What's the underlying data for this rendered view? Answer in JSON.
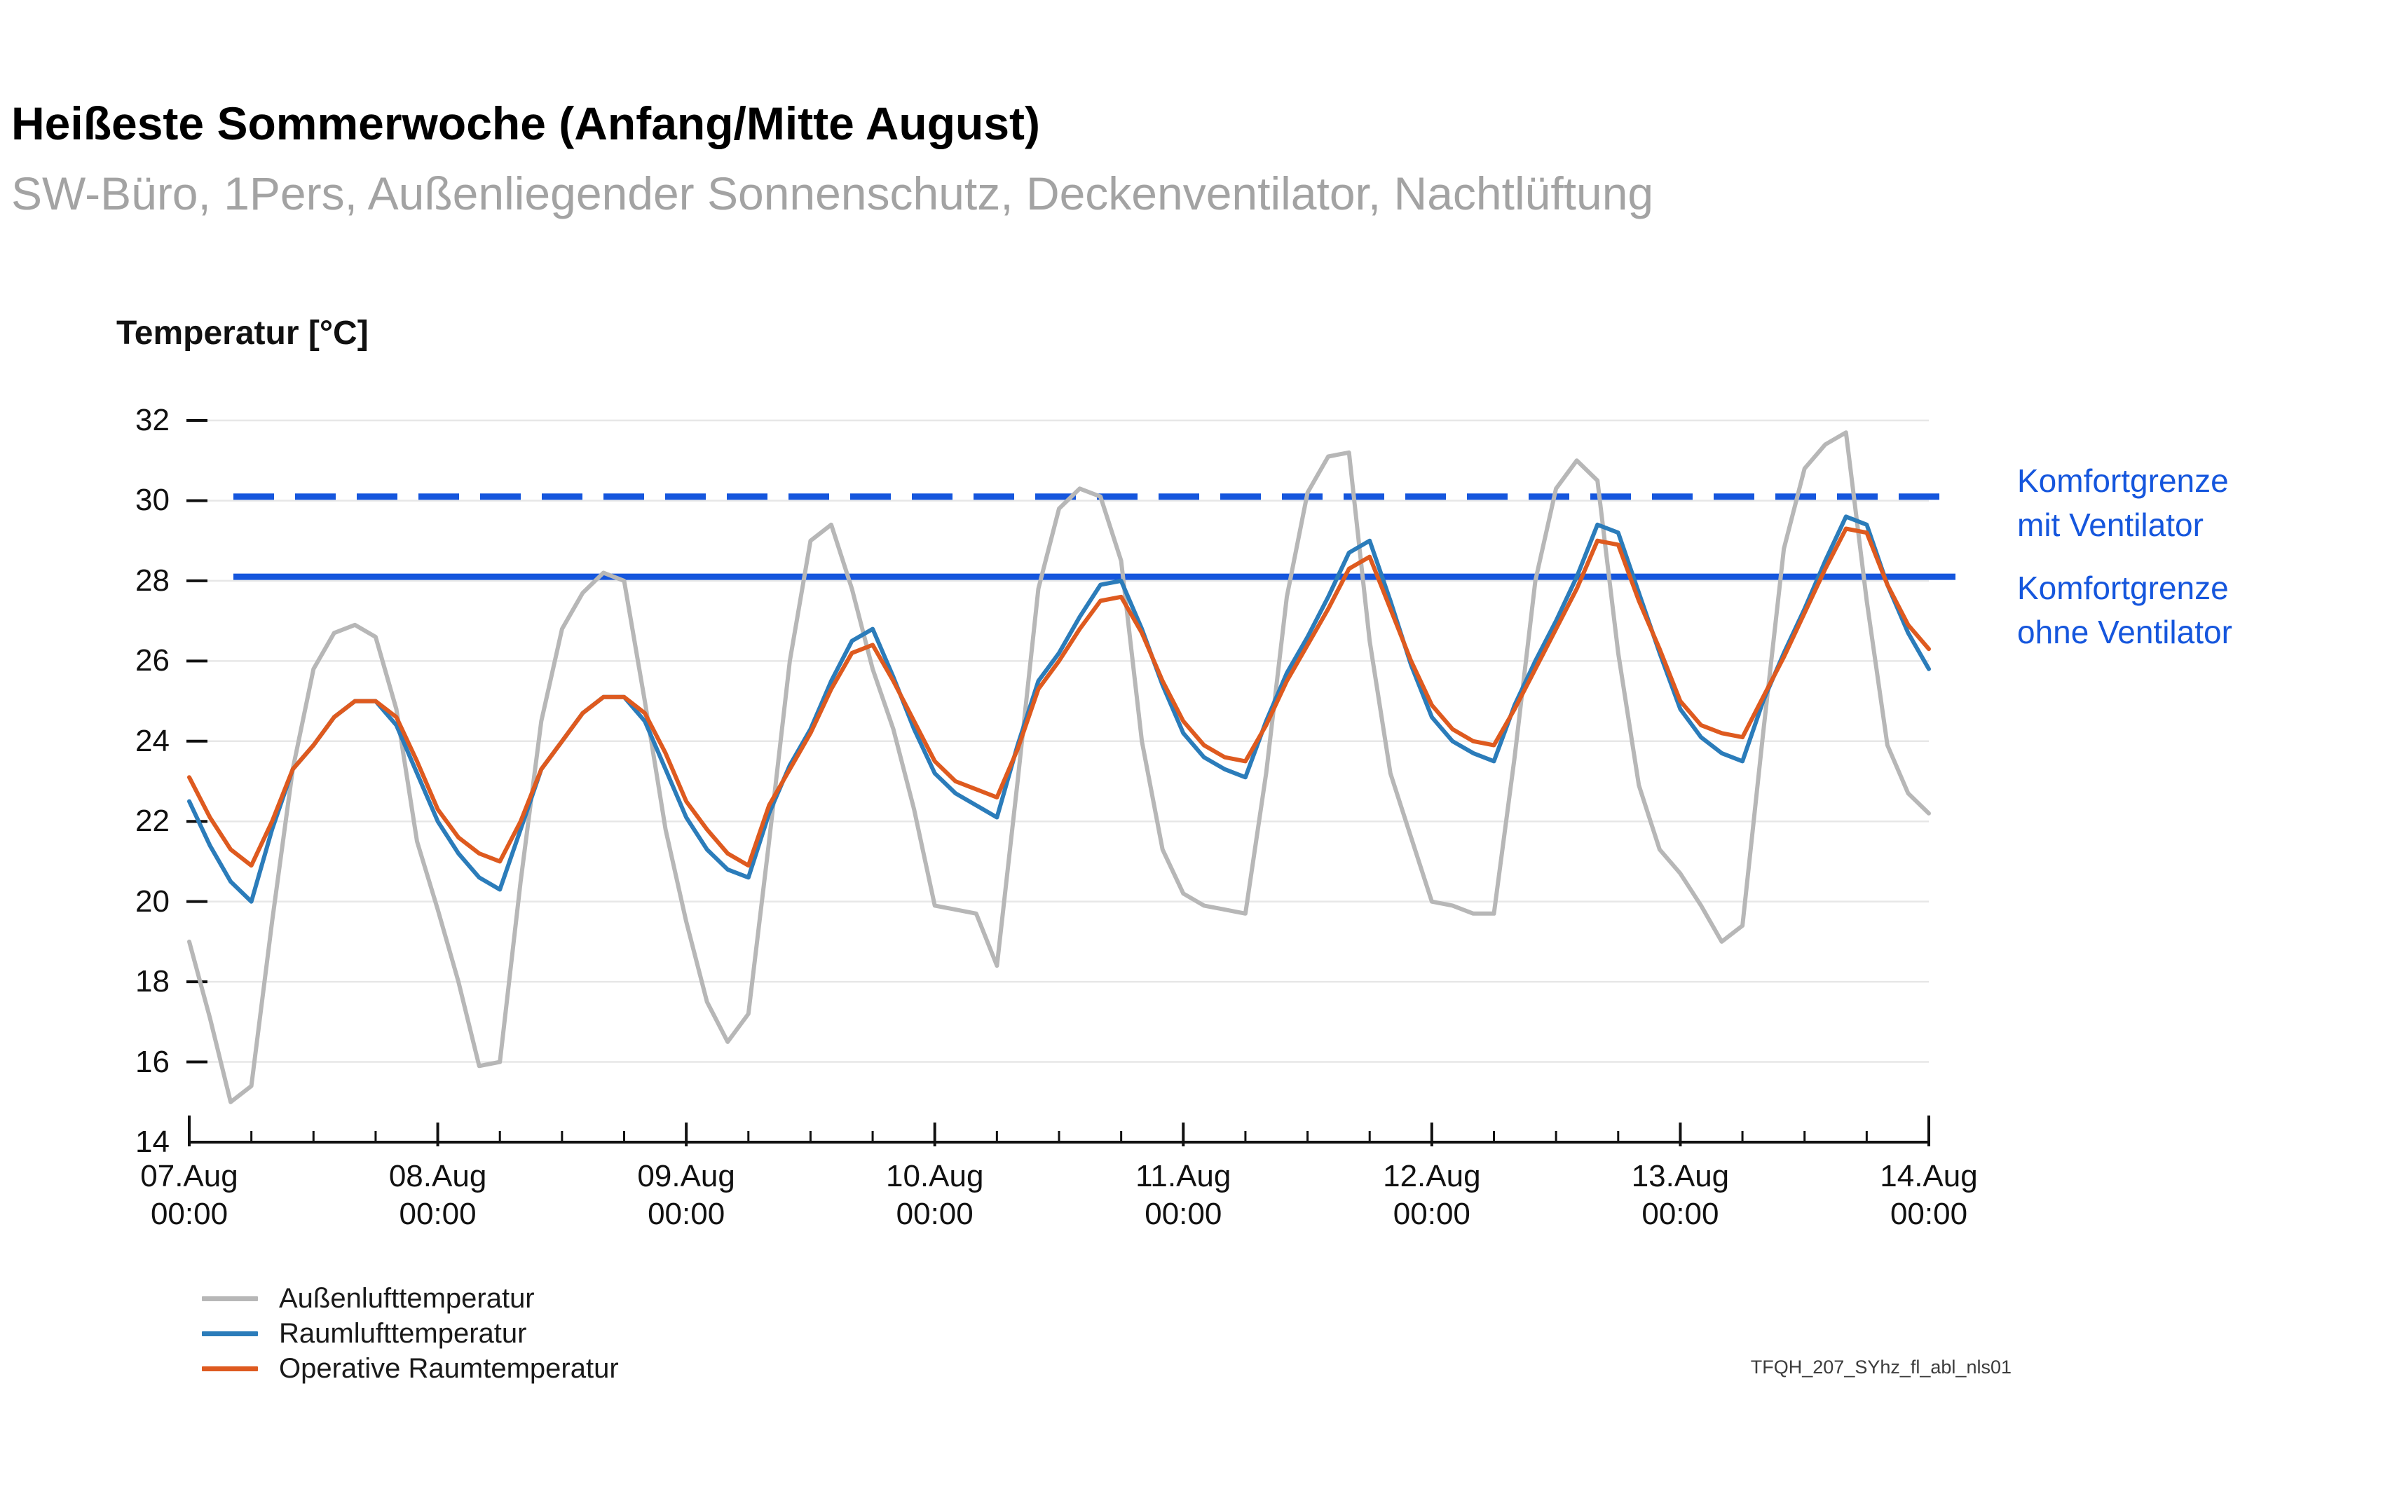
{
  "header": {
    "title": "Heißeste Sommerwoche (Anfang/Mitte August)",
    "subtitle": "SW-Büro, 1Pers, Außenliegender Sonnenschutz, Deckenventilator, Nachtlüftung"
  },
  "annotations": {
    "mit": {
      "line1": "Komfortgrenze",
      "line2": "mit Ventilator"
    },
    "ohne": {
      "line1": "Komfortgrenze",
      "line2": "ohne Ventilator"
    }
  },
  "footnote": "TFQH_207_SYhz_fl_abl_nls01",
  "colors": {
    "outdoor": "#b7b7b7",
    "room_air": "#2b7cba",
    "operative": "#de5a1f",
    "comfort": "#1556dd",
    "grid": "#e7e7e7",
    "axis": "#111111"
  },
  "chart_data": {
    "type": "line",
    "title": "Heißeste Sommerwoche (Anfang/Mitte August)",
    "ylabel": "Temperatur [°C]",
    "xlabel": "",
    "ylim": [
      14,
      32
    ],
    "y_ticks": [
      14,
      16,
      18,
      20,
      22,
      24,
      26,
      28,
      30,
      32
    ],
    "grid": "horizontal only",
    "legend_position": "bottom-left",
    "x_unit": "hours since 07.Aug 00:00",
    "x_step_hours": 2,
    "x_total_hours": 168,
    "x_minor_tick_hours": 6,
    "x_ticks": [
      {
        "date": "07.Aug",
        "time": "00:00",
        "hour": 0
      },
      {
        "date": "08.Aug",
        "time": "00:00",
        "hour": 24
      },
      {
        "date": "09.Aug",
        "time": "00:00",
        "hour": 48
      },
      {
        "date": "10.Aug",
        "time": "00:00",
        "hour": 72
      },
      {
        "date": "11.Aug",
        "time": "00:00",
        "hour": 96
      },
      {
        "date": "12.Aug",
        "time": "00:00",
        "hour": 120
      },
      {
        "date": "13.Aug",
        "time": "00:00",
        "hour": 144
      },
      {
        "date": "14.Aug",
        "time": "00:00",
        "hour": 168
      }
    ],
    "reference_lines": [
      {
        "name": "Komfortgrenze mit Ventilator",
        "value": 30.1,
        "style": "dashed",
        "color": "#1556dd",
        "start_hour": 4.3
      },
      {
        "name": "Komfortgrenze ohne Ventilator",
        "value": 28.1,
        "style": "solid",
        "color": "#1556dd",
        "start_hour": 4.3
      }
    ],
    "series": [
      {
        "name": "Außenlufttemperatur",
        "color": "#b7b7b7",
        "values": [
          19.0,
          17.1,
          15.0,
          15.4,
          19.5,
          23.3,
          25.8,
          26.7,
          26.9,
          26.6,
          24.8,
          21.5,
          19.8,
          18.0,
          15.9,
          16.0,
          20.5,
          24.5,
          26.8,
          27.7,
          28.2,
          28.0,
          25.0,
          21.8,
          19.5,
          17.5,
          16.5,
          17.2,
          21.5,
          26.0,
          29.0,
          29.4,
          27.8,
          25.8,
          24.3,
          22.3,
          19.9,
          19.8,
          19.7,
          18.4,
          23.0,
          27.8,
          29.8,
          30.3,
          30.1,
          28.5,
          24.0,
          21.3,
          20.2,
          19.9,
          19.8,
          19.7,
          23.2,
          27.6,
          30.2,
          31.1,
          31.2,
          26.5,
          23.2,
          21.6,
          20.0,
          19.9,
          19.7,
          19.7,
          23.6,
          28.0,
          30.3,
          31.0,
          30.5,
          26.2,
          22.9,
          21.3,
          20.7,
          19.9,
          19.0,
          19.4,
          24.2,
          28.8,
          30.8,
          31.4,
          31.7,
          27.5,
          23.9,
          22.7,
          22.2
        ]
      },
      {
        "name": "Raumlufttemperatur",
        "color": "#2b7cba",
        "values": [
          22.5,
          21.4,
          20.5,
          20.0,
          21.8,
          23.3,
          23.9,
          24.6,
          25.0,
          25.0,
          24.4,
          23.2,
          22.0,
          21.2,
          20.6,
          20.3,
          21.8,
          23.3,
          24.0,
          24.7,
          25.1,
          25.1,
          24.5,
          23.3,
          22.1,
          21.3,
          20.8,
          20.6,
          22.2,
          23.4,
          24.3,
          25.5,
          26.5,
          26.8,
          25.6,
          24.3,
          23.2,
          22.7,
          22.4,
          22.1,
          23.9,
          25.5,
          26.2,
          27.1,
          27.9,
          28.0,
          26.8,
          25.4,
          24.2,
          23.6,
          23.3,
          23.1,
          24.5,
          25.7,
          26.6,
          27.6,
          28.7,
          29.0,
          27.5,
          25.9,
          24.6,
          24.0,
          23.7,
          23.5,
          24.9,
          26.0,
          27.0,
          28.1,
          29.4,
          29.2,
          27.7,
          26.2,
          24.8,
          24.1,
          23.7,
          23.5,
          25.0,
          26.2,
          27.3,
          28.5,
          29.6,
          29.4,
          27.9,
          26.7,
          25.8
        ]
      },
      {
        "name": "Operative Raumtemperatur",
        "color": "#de5a1f",
        "values": [
          23.1,
          22.1,
          21.3,
          20.9,
          22.0,
          23.3,
          23.9,
          24.6,
          25.0,
          25.0,
          24.6,
          23.5,
          22.3,
          21.6,
          21.2,
          21.0,
          22.0,
          23.3,
          24.0,
          24.7,
          25.1,
          25.1,
          24.7,
          23.7,
          22.5,
          21.8,
          21.2,
          20.9,
          22.4,
          23.3,
          24.2,
          25.3,
          26.2,
          26.4,
          25.5,
          24.5,
          23.5,
          23.0,
          22.8,
          22.6,
          23.8,
          25.3,
          26.0,
          26.8,
          27.5,
          27.6,
          26.7,
          25.5,
          24.5,
          23.9,
          23.6,
          23.5,
          24.4,
          25.5,
          26.4,
          27.3,
          28.3,
          28.6,
          27.3,
          26.0,
          24.9,
          24.3,
          24.0,
          23.9,
          24.8,
          25.8,
          26.8,
          27.8,
          29.0,
          28.9,
          27.5,
          26.3,
          25.0,
          24.4,
          24.2,
          24.1,
          25.1,
          26.1,
          27.2,
          28.3,
          29.3,
          29.2,
          27.9,
          26.9,
          26.3
        ]
      }
    ]
  }
}
